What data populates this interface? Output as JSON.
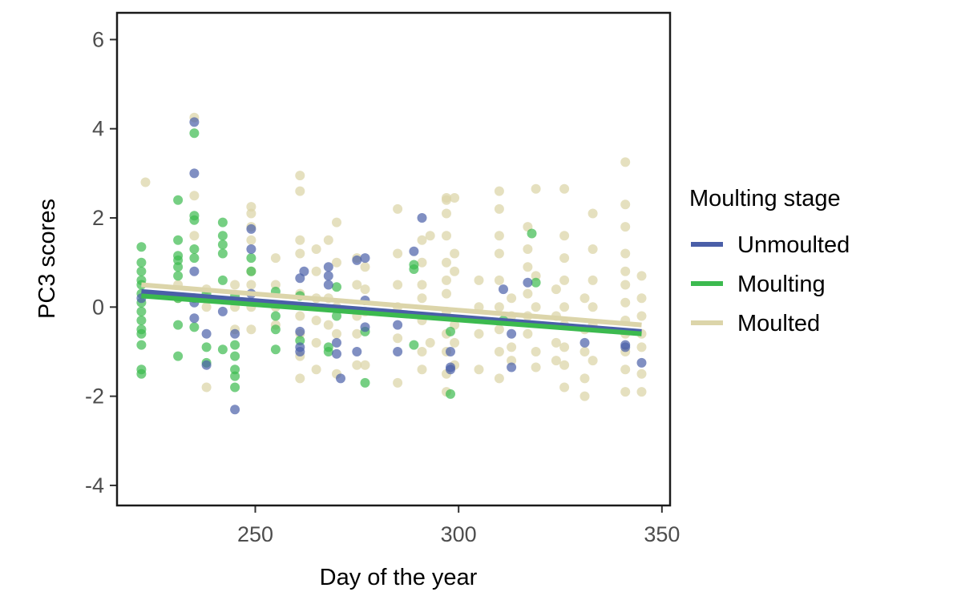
{
  "chart_data": {
    "type": "scatter",
    "xlabel": "Day of the year",
    "ylabel": "PC3 scores",
    "xlim": [
      216,
      352
    ],
    "ylim": [
      -4.45,
      6.6
    ],
    "xticks": [
      250,
      300,
      350
    ],
    "yticks": [
      -4,
      -2,
      0,
      2,
      4,
      6
    ],
    "grid": false,
    "legend": {
      "title": "Moulting stage",
      "position": "right"
    },
    "colors": {
      "Unmoulted": "#4a5fa8",
      "Moulting": "#3cba4f",
      "Moulted": "#dcd5aa"
    },
    "series": [
      {
        "name": "Unmoulted",
        "color": "#4a5fa8",
        "trend": {
          "x": [
            222,
            345
          ],
          "y": [
            0.35,
            -0.55
          ]
        },
        "points": [
          [
            222,
            0.2
          ],
          [
            235,
            4.15
          ],
          [
            235,
            3.0
          ],
          [
            235,
            0.8
          ],
          [
            235,
            0.1
          ],
          [
            235,
            -0.25
          ],
          [
            238,
            -0.6
          ],
          [
            238,
            -1.3
          ],
          [
            242,
            -0.1
          ],
          [
            245,
            -0.6
          ],
          [
            245,
            -2.3
          ],
          [
            249,
            1.75
          ],
          [
            249,
            1.3
          ],
          [
            249,
            0.3
          ],
          [
            261,
            0.65
          ],
          [
            262,
            0.8
          ],
          [
            261,
            -0.9
          ],
          [
            261,
            -1.0
          ],
          [
            261,
            -0.55
          ],
          [
            268,
            0.9
          ],
          [
            268,
            0.7
          ],
          [
            268,
            0.5
          ],
          [
            270,
            -0.8
          ],
          [
            270,
            -1.05
          ],
          [
            271,
            -1.6
          ],
          [
            275,
            1.05
          ],
          [
            275,
            -1.0
          ],
          [
            277,
            1.1
          ],
          [
            277,
            -0.45
          ],
          [
            277,
            0.15
          ],
          [
            285,
            -0.4
          ],
          [
            285,
            -1.0
          ],
          [
            289,
            1.25
          ],
          [
            291,
            2.0
          ],
          [
            298,
            -1.0
          ],
          [
            298,
            -1.4
          ],
          [
            298,
            -1.35
          ],
          [
            311,
            0.4
          ],
          [
            313,
            -0.6
          ],
          [
            313,
            -1.35
          ],
          [
            317,
            0.55
          ],
          [
            331,
            -0.8
          ],
          [
            341,
            -0.85
          ],
          [
            341,
            -0.9
          ],
          [
            345,
            -1.25
          ]
        ]
      },
      {
        "name": "Moulting",
        "color": "#3cba4f",
        "trend": {
          "x": [
            222,
            345
          ],
          "y": [
            0.25,
            -0.6
          ]
        },
        "points": [
          [
            222,
            1.35
          ],
          [
            222,
            1.0
          ],
          [
            222,
            0.8
          ],
          [
            222,
            0.6
          ],
          [
            222,
            0.5
          ],
          [
            222,
            0.3
          ],
          [
            222,
            0.1
          ],
          [
            222,
            -0.1
          ],
          [
            222,
            -0.3
          ],
          [
            222,
            -0.5
          ],
          [
            222,
            -0.6
          ],
          [
            222,
            -0.85
          ],
          [
            222,
            -1.4
          ],
          [
            222,
            -1.5
          ],
          [
            231,
            2.4
          ],
          [
            231,
            1.5
          ],
          [
            231,
            1.15
          ],
          [
            231,
            1.05
          ],
          [
            231,
            0.9
          ],
          [
            231,
            0.7
          ],
          [
            231,
            0.2
          ],
          [
            231,
            -0.4
          ],
          [
            231,
            -1.1
          ],
          [
            235,
            3.9
          ],
          [
            235,
            2.05
          ],
          [
            235,
            1.95
          ],
          [
            235,
            1.3
          ],
          [
            235,
            1.1
          ],
          [
            235,
            0.2
          ],
          [
            235,
            -0.45
          ],
          [
            238,
            0.3
          ],
          [
            238,
            -0.9
          ],
          [
            238,
            -1.25
          ],
          [
            242,
            1.9
          ],
          [
            242,
            1.6
          ],
          [
            242,
            1.4
          ],
          [
            242,
            1.2
          ],
          [
            242,
            0.6
          ],
          [
            242,
            -0.95
          ],
          [
            245,
            0.25
          ],
          [
            245,
            -0.85
          ],
          [
            245,
            -1.1
          ],
          [
            245,
            -1.4
          ],
          [
            245,
            -1.55
          ],
          [
            245,
            -1.8
          ],
          [
            249,
            1.1
          ],
          [
            249,
            0.8
          ],
          [
            255,
            0.35
          ],
          [
            255,
            -0.2
          ],
          [
            255,
            -0.5
          ],
          [
            255,
            -0.95
          ],
          [
            261,
            0.25
          ],
          [
            261,
            -0.75
          ],
          [
            268,
            -0.9
          ],
          [
            268,
            -1.0
          ],
          [
            270,
            -0.2
          ],
          [
            270,
            0.45
          ],
          [
            277,
            -0.55
          ],
          [
            277,
            -1.7
          ],
          [
            289,
            0.95
          ],
          [
            289,
            0.85
          ],
          [
            289,
            -0.85
          ],
          [
            298,
            -0.55
          ],
          [
            298,
            -1.95
          ],
          [
            311,
            -0.3
          ],
          [
            318,
            1.65
          ],
          [
            319,
            0.55
          ]
        ]
      },
      {
        "name": "Moulted",
        "color": "#dcd5aa",
        "trend": {
          "x": [
            222,
            345
          ],
          "y": [
            0.5,
            -0.4
          ]
        },
        "points": [
          [
            223,
            2.8
          ],
          [
            231,
            0.5
          ],
          [
            231,
            0.2
          ],
          [
            235,
            4.25
          ],
          [
            235,
            2.5
          ],
          [
            235,
            1.6
          ],
          [
            238,
            0.4
          ],
          [
            238,
            0.0
          ],
          [
            238,
            -1.8
          ],
          [
            245,
            0.5
          ],
          [
            245,
            0.0
          ],
          [
            245,
            -0.5
          ],
          [
            249,
            2.25
          ],
          [
            249,
            2.1
          ],
          [
            249,
            1.8
          ],
          [
            249,
            1.5
          ],
          [
            249,
            0.8
          ],
          [
            249,
            0.5
          ],
          [
            249,
            0.0
          ],
          [
            249,
            -0.5
          ],
          [
            255,
            1.1
          ],
          [
            255,
            0.5
          ],
          [
            255,
            0.0
          ],
          [
            255,
            -0.4
          ],
          [
            261,
            2.95
          ],
          [
            261,
            2.6
          ],
          [
            261,
            1.5
          ],
          [
            261,
            1.2
          ],
          [
            261,
            0.3
          ],
          [
            261,
            -0.2
          ],
          [
            261,
            -0.6
          ],
          [
            261,
            -1.1
          ],
          [
            261,
            -1.6
          ],
          [
            265,
            1.3
          ],
          [
            265,
            0.8
          ],
          [
            265,
            0.2
          ],
          [
            265,
            -0.3
          ],
          [
            265,
            -0.8
          ],
          [
            265,
            -1.4
          ],
          [
            268,
            1.5
          ],
          [
            268,
            0.2
          ],
          [
            268,
            -0.4
          ],
          [
            270,
            1.9
          ],
          [
            270,
            1.0
          ],
          [
            270,
            0.0
          ],
          [
            270,
            -0.6
          ],
          [
            270,
            -1.5
          ],
          [
            275,
            1.1
          ],
          [
            275,
            0.5
          ],
          [
            275,
            -0.2
          ],
          [
            275,
            -0.6
          ],
          [
            275,
            -1.3
          ],
          [
            277,
            0.9
          ],
          [
            277,
            0.4
          ],
          [
            277,
            -0.1
          ],
          [
            277,
            -1.3
          ],
          [
            285,
            2.2
          ],
          [
            285,
            1.2
          ],
          [
            285,
            0.5
          ],
          [
            285,
            0.0
          ],
          [
            285,
            -0.7
          ],
          [
            285,
            -1.7
          ],
          [
            291,
            1.5
          ],
          [
            291,
            1.0
          ],
          [
            291,
            0.5
          ],
          [
            291,
            0.2
          ],
          [
            291,
            -0.3
          ],
          [
            291,
            -1.0
          ],
          [
            291,
            -1.4
          ],
          [
            293,
            1.6
          ],
          [
            293,
            -0.8
          ],
          [
            297,
            2.45
          ],
          [
            297,
            2.4
          ],
          [
            297,
            2.1
          ],
          [
            297,
            1.6
          ],
          [
            297,
            1.0
          ],
          [
            297,
            0.6
          ],
          [
            297,
            0.3
          ],
          [
            297,
            -0.1
          ],
          [
            297,
            -0.6
          ],
          [
            297,
            -1.0
          ],
          [
            297,
            -1.5
          ],
          [
            297,
            -1.9
          ],
          [
            299,
            2.45
          ],
          [
            299,
            1.2
          ],
          [
            299,
            0.8
          ],
          [
            299,
            -0.4
          ],
          [
            299,
            -0.8
          ],
          [
            299,
            -1.3
          ],
          [
            305,
            0.6
          ],
          [
            305,
            0.0
          ],
          [
            305,
            -0.6
          ],
          [
            305,
            -1.4
          ],
          [
            310,
            2.6
          ],
          [
            310,
            2.2
          ],
          [
            310,
            1.6
          ],
          [
            310,
            1.2
          ],
          [
            310,
            0.6
          ],
          [
            310,
            0.0
          ],
          [
            310,
            -0.5
          ],
          [
            310,
            -1.0
          ],
          [
            310,
            -1.6
          ],
          [
            313,
            0.2
          ],
          [
            313,
            -0.2
          ],
          [
            313,
            -0.9
          ],
          [
            313,
            -1.2
          ],
          [
            317,
            1.8
          ],
          [
            317,
            1.3
          ],
          [
            317,
            0.9
          ],
          [
            317,
            0.3
          ],
          [
            317,
            -0.2
          ],
          [
            317,
            -0.6
          ],
          [
            319,
            2.65
          ],
          [
            319,
            0.7
          ],
          [
            319,
            0.0
          ],
          [
            319,
            -1.0
          ],
          [
            319,
            -1.35
          ],
          [
            324,
            0.4
          ],
          [
            324,
            -0.2
          ],
          [
            324,
            -0.8
          ],
          [
            324,
            -1.2
          ],
          [
            326,
            2.65
          ],
          [
            326,
            1.6
          ],
          [
            326,
            1.1
          ],
          [
            326,
            0.6
          ],
          [
            326,
            0.0
          ],
          [
            326,
            -0.4
          ],
          [
            326,
            -0.9
          ],
          [
            326,
            -1.3
          ],
          [
            326,
            -1.8
          ],
          [
            331,
            0.2
          ],
          [
            331,
            -0.5
          ],
          [
            331,
            -1.0
          ],
          [
            331,
            -1.6
          ],
          [
            331,
            -2.0
          ],
          [
            333,
            2.1
          ],
          [
            333,
            1.3
          ],
          [
            333,
            0.6
          ],
          [
            333,
            0.0
          ],
          [
            333,
            -0.4
          ],
          [
            333,
            -1.2
          ],
          [
            341,
            3.25
          ],
          [
            341,
            2.3
          ],
          [
            341,
            1.8
          ],
          [
            341,
            1.2
          ],
          [
            341,
            0.8
          ],
          [
            341,
            0.5
          ],
          [
            341,
            0.1
          ],
          [
            341,
            -0.3
          ],
          [
            341,
            -0.6
          ],
          [
            341,
            -1.0
          ],
          [
            341,
            -1.4
          ],
          [
            341,
            -1.9
          ],
          [
            345,
            0.7
          ],
          [
            345,
            0.2
          ],
          [
            345,
            -0.2
          ],
          [
            345,
            -0.6
          ],
          [
            345,
            -0.9
          ],
          [
            345,
            -1.5
          ],
          [
            345,
            -1.9
          ]
        ]
      }
    ]
  }
}
